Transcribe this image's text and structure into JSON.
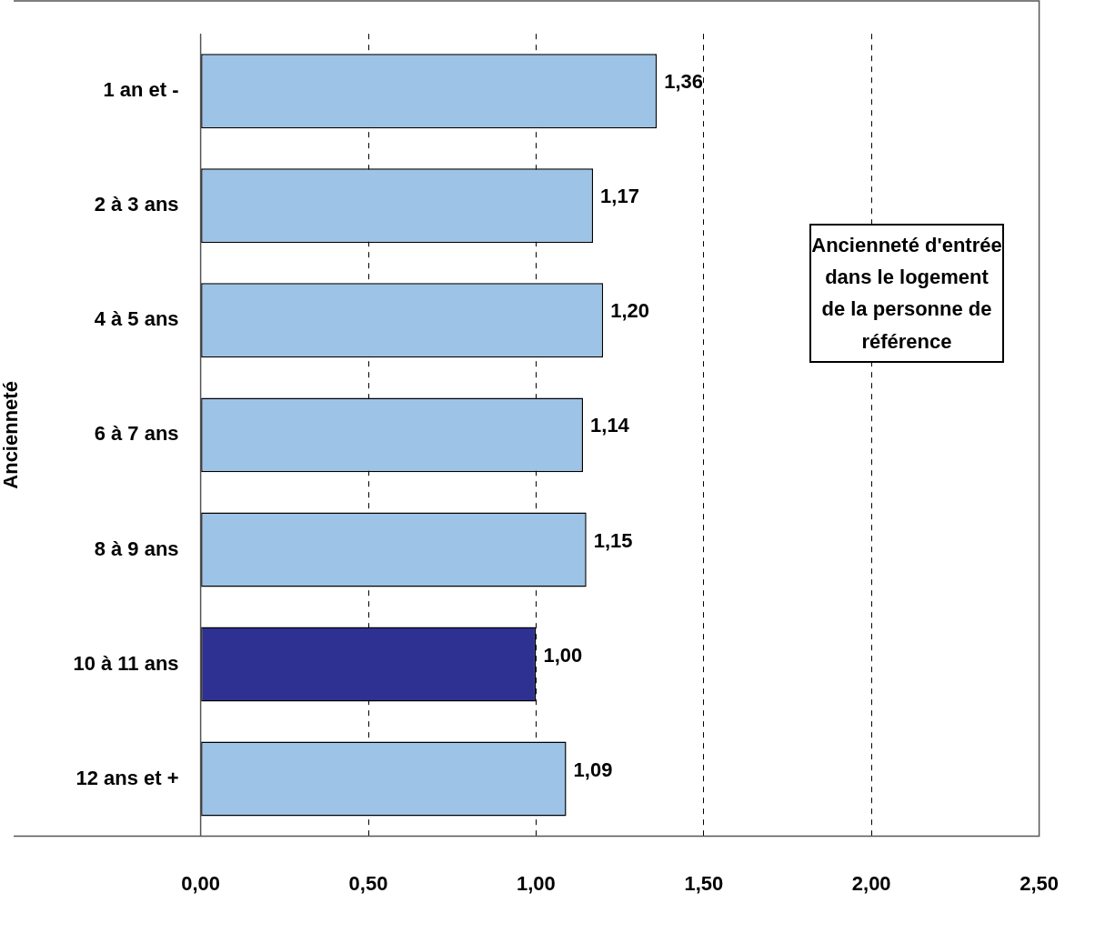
{
  "chart_data": {
    "type": "bar",
    "orientation": "horizontal",
    "ylabel": "Ancienneté",
    "categories": [
      "1 an et -",
      "2 à 3 ans",
      "4 à 5 ans",
      "6 à 7 ans",
      "8 à 9 ans",
      "10 à 11 ans",
      "12 ans et +"
    ],
    "values": [
      1.36,
      1.17,
      1.2,
      1.14,
      1.15,
      1.0,
      1.09
    ],
    "value_labels": [
      "1,36",
      "1,17",
      "1,20",
      "1,14",
      "1,15",
      "1,00",
      "1,09"
    ],
    "colors": [
      "#9dc3e6",
      "#9dc3e6",
      "#9dc3e6",
      "#9dc3e6",
      "#9dc3e6",
      "#2e3192",
      "#9dc3e6"
    ],
    "xlim": [
      0,
      2.5
    ],
    "xticks": [
      {
        "value": 0,
        "label": "0,00"
      },
      {
        "value": 0.5,
        "label": "0,50"
      },
      {
        "value": 1,
        "label": "1,00"
      },
      {
        "value": 1.5,
        "label": "1,50"
      },
      {
        "value": 2,
        "label": "2,00"
      },
      {
        "value": 2.5,
        "label": "2,50"
      }
    ],
    "grid": "x",
    "legend": false,
    "annotations": [
      "Ancienneté d'entrée dans le logement de la personne de référence"
    ]
  }
}
